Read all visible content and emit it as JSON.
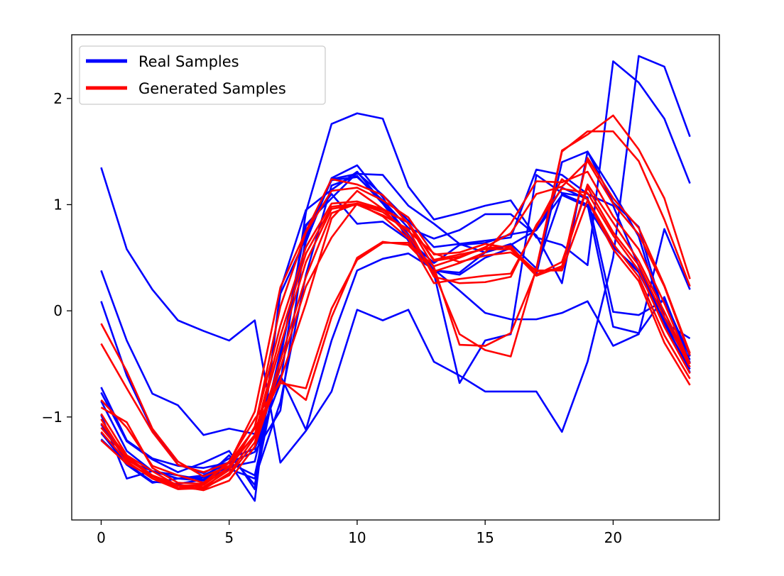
{
  "chart_data": {
    "type": "line",
    "title": "",
    "xlabel": "",
    "ylabel": "",
    "xlim": [
      -1.15,
      24.15
    ],
    "ylim": [
      -1.97,
      2.6
    ],
    "xticks": [
      0,
      5,
      10,
      15,
      20
    ],
    "xtick_labels": [
      "0",
      "5",
      "10",
      "15",
      "20"
    ],
    "yticks": [
      -1,
      0,
      1,
      2
    ],
    "ytick_labels": [
      "−1",
      "0",
      "1",
      "2"
    ],
    "x": [
      0,
      1,
      2,
      3,
      4,
      5,
      6,
      7,
      8,
      9,
      10,
      11,
      12,
      13,
      14,
      15,
      16,
      17,
      18,
      19,
      20,
      21,
      22,
      23
    ],
    "colors": {
      "real": "#0000ff",
      "generated": "#ff0000"
    },
    "legend": {
      "placement": "top-left",
      "entries": [
        {
          "label": "Real Samples",
          "group": "real"
        },
        {
          "label": "Generated Samples",
          "group": "generated"
        }
      ]
    },
    "series": [
      {
        "name": "Real Samples",
        "group": "real",
        "values": [
          1.35,
          0.58,
          0.2,
          -0.09,
          -0.19,
          -0.28,
          -0.09,
          -1.43,
          -1.13,
          -0.76,
          0.01,
          -0.09,
          0.01,
          -0.48,
          -0.61,
          -0.76,
          -0.76,
          -0.76,
          -1.14,
          -0.48,
          0.5,
          2.4,
          2.3,
          1.64
        ]
      },
      {
        "name": "Real Samples",
        "group": "real",
        "values": [
          0.38,
          -0.28,
          -0.78,
          -0.89,
          -1.17,
          -1.11,
          -1.16,
          -0.61,
          -1.12,
          -0.28,
          0.38,
          0.49,
          0.54,
          0.39,
          0.19,
          -0.02,
          -0.08,
          -0.08,
          -0.02,
          0.09,
          -0.33,
          -0.22,
          0.77,
          0.2
        ]
      },
      {
        "name": "Real Samples",
        "group": "real",
        "values": [
          0.09,
          -0.61,
          -1.12,
          -1.45,
          -1.53,
          -1.39,
          -1.3,
          -0.68,
          0.93,
          1.76,
          1.86,
          1.81,
          1.17,
          0.86,
          0.92,
          0.99,
          1.04,
          0.69,
          0.62,
          0.43,
          2.35,
          2.15,
          1.81,
          1.2
        ]
      },
      {
        "name": "Real Samples",
        "group": "real",
        "values": [
          -0.72,
          -1.22,
          -1.39,
          -1.46,
          -1.48,
          -1.43,
          -1.33,
          -0.94,
          0.71,
          1.24,
          1.29,
          1.28,
          0.99,
          0.82,
          0.63,
          0.66,
          0.69,
          1.33,
          1.28,
          1.1,
          0.99,
          0.42,
          -0.11,
          -0.26
        ]
      },
      {
        "name": "Real Samples",
        "group": "real",
        "values": [
          -0.77,
          -1.23,
          -1.4,
          -1.52,
          -1.43,
          -1.32,
          -1.68,
          0.16,
          0.69,
          1.23,
          1.26,
          1.04,
          0.78,
          0.68,
          0.76,
          0.91,
          0.91,
          0.71,
          0.26,
          1.5,
          1.12,
          0.7,
          -0.1,
          -0.49
        ]
      },
      {
        "name": "Real Samples",
        "group": "real",
        "values": [
          -0.85,
          -1.32,
          -1.51,
          -1.58,
          -1.57,
          -1.47,
          -1.42,
          -0.39,
          0.65,
          1.25,
          1.37,
          1.07,
          0.66,
          0.38,
          0.34,
          0.5,
          0.59,
          0.34,
          1.4,
          1.5,
          1.02,
          0.79,
          -0.06,
          -0.46
        ]
      },
      {
        "name": "Real Samples",
        "group": "real",
        "values": [
          -0.98,
          -1.58,
          -1.51,
          -1.55,
          -1.59,
          -1.49,
          -1.58,
          -0.86,
          0.34,
          1.18,
          1.27,
          1.01,
          0.7,
          0.35,
          -0.68,
          -0.28,
          -0.22,
          1.28,
          1.11,
          1.07,
          -0.01,
          -0.04,
          0.1,
          -0.43
        ]
      },
      {
        "name": "Real Samples",
        "group": "real",
        "values": [
          -1.07,
          -1.41,
          -1.51,
          -1.58,
          -1.6,
          -1.43,
          -1.79,
          0.2,
          0.95,
          1.14,
          1.31,
          1.02,
          0.72,
          0.38,
          0.36,
          0.55,
          0.63,
          0.4,
          1.1,
          1.0,
          -0.15,
          -0.21,
          0.13,
          -0.49
        ]
      },
      {
        "name": "Real Samples",
        "group": "real",
        "values": [
          -1.15,
          -1.45,
          -1.62,
          -1.58,
          -1.55,
          -1.43,
          -1.55,
          -0.45,
          0.8,
          1.1,
          0.82,
          0.84,
          0.67,
          0.45,
          0.62,
          0.64,
          0.72,
          0.76,
          1.09,
          0.98,
          0.6,
          0.38,
          -0.12,
          -0.55
        ]
      },
      {
        "name": "Real Samples",
        "group": "real",
        "values": [
          -1.21,
          -1.44,
          -1.61,
          -1.63,
          -1.59,
          -1.36,
          -1.64,
          -0.44,
          0.81,
          1.06,
          1.3,
          1.09,
          0.85,
          0.6,
          0.63,
          0.55,
          0.62,
          0.76,
          1.16,
          1.05,
          0.61,
          0.36,
          -0.11,
          -0.58
        ]
      },
      {
        "name": "Generated Samples",
        "group": "generated",
        "values": [
          -0.12,
          -0.57,
          -1.11,
          -1.42,
          -1.56,
          -1.46,
          -1.17,
          -0.65,
          0.07,
          0.87,
          1.13,
          0.96,
          0.71,
          0.36,
          -0.22,
          -0.37,
          -0.43,
          0.4,
          1.51,
          1.66,
          1.84,
          1.52,
          1.06,
          0.3
        ]
      },
      {
        "name": "Generated Samples",
        "group": "generated",
        "values": [
          -0.31,
          -0.73,
          -1.14,
          -1.45,
          -1.52,
          -1.43,
          -0.95,
          0.22,
          0.75,
          1.24,
          1.19,
          1.09,
          0.82,
          0.41,
          -0.32,
          -0.33,
          -0.21,
          0.38,
          1.5,
          1.69,
          1.69,
          1.41,
          0.86,
          0.23
        ]
      },
      {
        "name": "Generated Samples",
        "group": "generated",
        "values": [
          -0.84,
          -1.1,
          -1.46,
          -1.55,
          -1.62,
          -1.42,
          -1.02,
          -0.68,
          -0.73,
          0.02,
          0.48,
          0.64,
          0.64,
          0.42,
          0.5,
          0.6,
          0.73,
          1.1,
          1.17,
          1.41,
          1.01,
          0.72,
          0.23,
          -0.42
        ]
      },
      {
        "name": "Generated Samples",
        "group": "generated",
        "values": [
          -0.91,
          -1.05,
          -1.48,
          -1.62,
          -1.63,
          -1.43,
          -1.11,
          -0.65,
          -0.84,
          -0.06,
          0.5,
          0.65,
          0.62,
          0.37,
          0.45,
          0.55,
          0.82,
          1.22,
          1.21,
          1.31,
          0.89,
          0.58,
          0.07,
          -0.5
        ]
      },
      {
        "name": "Generated Samples",
        "group": "generated",
        "values": [
          -0.97,
          -1.36,
          -1.51,
          -1.65,
          -1.64,
          -1.47,
          -1.1,
          0.04,
          0.74,
          1.13,
          1.16,
          1.04,
          0.88,
          0.53,
          0.55,
          0.63,
          0.59,
          0.37,
          0.4,
          1.44,
          1.06,
          0.78,
          0.24,
          -0.4
        ]
      },
      {
        "name": "Generated Samples",
        "group": "generated",
        "values": [
          -1.02,
          -1.4,
          -1.55,
          -1.64,
          -1.66,
          -1.5,
          -1.09,
          -0.14,
          0.6,
          1.01,
          1.03,
          0.96,
          0.83,
          0.48,
          0.53,
          0.58,
          0.58,
          0.33,
          0.42,
          1.19,
          0.83,
          0.47,
          -0.01,
          -0.5
        ]
      },
      {
        "name": "Generated Samples",
        "group": "generated",
        "values": [
          -1.06,
          -1.37,
          -1.55,
          -1.65,
          -1.68,
          -1.47,
          -1.17,
          -0.24,
          0.54,
          0.98,
          1.01,
          0.95,
          0.83,
          0.47,
          0.51,
          0.59,
          0.61,
          0.34,
          0.46,
          1.16,
          0.74,
          0.43,
          -0.06,
          -0.53
        ]
      },
      {
        "name": "Generated Samples",
        "group": "generated",
        "values": [
          -1.1,
          -1.39,
          -1.56,
          -1.67,
          -1.68,
          -1.53,
          -1.19,
          -0.33,
          0.46,
          0.96,
          1.0,
          0.9,
          0.77,
          0.32,
          0.26,
          0.27,
          0.32,
          0.81,
          1.15,
          1.11,
          0.71,
          0.38,
          -0.15,
          -0.59
        ]
      },
      {
        "name": "Generated Samples",
        "group": "generated",
        "values": [
          -1.14,
          -1.42,
          -1.58,
          -1.68,
          -1.67,
          -1.55,
          -1.24,
          -0.47,
          0.32,
          0.92,
          1.01,
          0.89,
          0.68,
          0.26,
          0.3,
          0.33,
          0.35,
          0.79,
          1.24,
          1.05,
          0.63,
          0.32,
          -0.23,
          -0.64
        ]
      },
      {
        "name": "Generated Samples",
        "group": "generated",
        "values": [
          -1.22,
          -1.44,
          -1.56,
          -1.65,
          -1.69,
          -1.6,
          -1.28,
          -0.54,
          0.23,
          0.69,
          1.01,
          0.93,
          0.75,
          0.54,
          0.46,
          0.52,
          0.55,
          0.38,
          0.38,
          1.04,
          0.58,
          0.28,
          -0.3,
          -0.7
        ]
      }
    ]
  }
}
